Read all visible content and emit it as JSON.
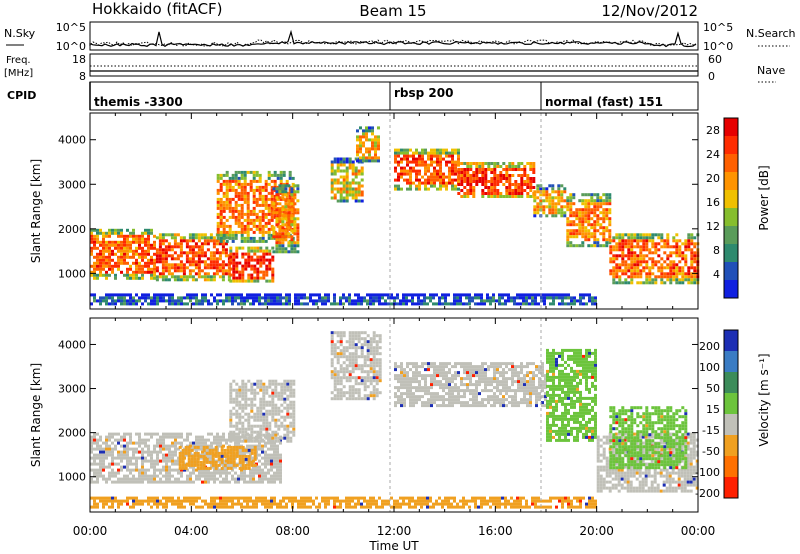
{
  "header": {
    "station": "Hokkaido (fitACF)",
    "beam": "Beam 15",
    "date": "12/Nov/2012"
  },
  "noise_panel": {
    "left_label": "N.Sky",
    "right_label": "N.Search",
    "top_tick": "10^5",
    "bottom_tick": "10^0",
    "right_top_tick": "10^5",
    "right_bottom_tick": "10^0"
  },
  "freq_panel": {
    "left_label_1": "Freq.",
    "left_label_2": "[MHz]",
    "top_tick": "18",
    "bottom_tick": "8",
    "right_label": "Nave",
    "right_top_tick": "60",
    "right_bottom_tick": "0"
  },
  "cpid_panel": {
    "label": "CPID",
    "segments": [
      {
        "label": "themis -3300",
        "start_hour": 0
      },
      {
        "label": "rbsp 200",
        "start_hour": 12
      },
      {
        "label": "normal (fast) 151",
        "start_hour": 18
      }
    ]
  },
  "chart_data": [
    {
      "type": "heatmap",
      "name": "power",
      "xlabel": "",
      "ylabel": "Slant Range [km]",
      "x_unit": "hours UT",
      "xlim": [
        0,
        24
      ],
      "ylim": [
        200,
        4600
      ],
      "y_ticks": [
        "1000",
        "2000",
        "3000",
        "4000"
      ],
      "colorbar_label": "Power [dB]",
      "colorbar_ticks": [
        "4",
        "8",
        "12",
        "16",
        "20",
        "24",
        "28"
      ],
      "colors": [
        "#1020e0",
        "#2050b8",
        "#2e8a6e",
        "#5a9c5a",
        "#86be2e",
        "#f0c000",
        "#ff9400",
        "#ff6000",
        "#ff2c00",
        "#e60000"
      ],
      "regions": [
        {
          "t0": 0.0,
          "t1": 2.6,
          "r0": 900,
          "r1": 2000,
          "level": 0.75
        },
        {
          "t0": 2.6,
          "t1": 5.5,
          "r0": 850,
          "r1": 1900,
          "level": 0.8
        },
        {
          "t0": 5.5,
          "t1": 7.2,
          "r0": 800,
          "r1": 1600,
          "level": 0.85
        },
        {
          "t0": 5.0,
          "t1": 8.0,
          "r0": 1700,
          "r1": 3300,
          "level": 0.7
        },
        {
          "t0": 7.2,
          "t1": 8.2,
          "r0": 1500,
          "r1": 3000,
          "level": 0.65
        },
        {
          "t0": 9.5,
          "t1": 10.8,
          "r0": 2600,
          "r1": 3600,
          "level": 0.55
        },
        {
          "t0": 10.5,
          "t1": 11.4,
          "r0": 3500,
          "r1": 4300,
          "level": 0.6
        },
        {
          "t0": 12.0,
          "t1": 14.5,
          "r0": 2900,
          "r1": 3800,
          "level": 0.8
        },
        {
          "t0": 14.5,
          "t1": 17.5,
          "r0": 2700,
          "r1": 3500,
          "level": 0.85
        },
        {
          "t0": 17.5,
          "t1": 18.8,
          "r0": 2300,
          "r1": 3000,
          "level": 0.6
        },
        {
          "t0": 18.8,
          "t1": 20.5,
          "r0": 1600,
          "r1": 2800,
          "level": 0.7
        },
        {
          "t0": 20.5,
          "t1": 24.0,
          "r0": 800,
          "r1": 1900,
          "level": 0.75
        },
        {
          "t0": 0.0,
          "t1": 20.0,
          "r0": 300,
          "r1": 550,
          "level": 0.15
        }
      ]
    },
    {
      "type": "heatmap",
      "name": "velocity",
      "xlabel": "Time UT",
      "ylabel": "Slant Range [km]",
      "x_unit": "hours UT",
      "xlim": [
        0,
        24
      ],
      "ylim": [
        200,
        4600
      ],
      "x_ticks": [
        "00:00",
        "04:00",
        "08:00",
        "12:00",
        "16:00",
        "20:00",
        "00:00"
      ],
      "y_ticks": [
        "1000",
        "2000",
        "3000",
        "4000"
      ],
      "colorbar_label": "Velocity [m s⁻¹]",
      "colorbar_ticks": [
        "200",
        "100",
        "50",
        "15",
        "-15",
        "-50",
        "-100",
        "-200"
      ],
      "colors": [
        "#1c2eb4",
        "#3a7cc4",
        "#3c8c5a",
        "#6cc43c",
        "#c0c0b8",
        "#f0a020",
        "#ff7000",
        "#ff2000"
      ],
      "regions": [
        {
          "t0": 0.0,
          "t1": 7.5,
          "r0": 850,
          "r1": 2000,
          "class": 4
        },
        {
          "t0": 5.5,
          "t1": 8.0,
          "r0": 1800,
          "r1": 3200,
          "class": 4
        },
        {
          "t0": 3.5,
          "t1": 6.5,
          "r0": 1200,
          "r1": 1700,
          "class": 5
        },
        {
          "t0": 9.5,
          "t1": 11.5,
          "r0": 2800,
          "r1": 4300,
          "class": 4
        },
        {
          "t0": 12.0,
          "t1": 18.0,
          "r0": 2600,
          "r1": 3600,
          "class": 4
        },
        {
          "t0": 18.0,
          "t1": 20.0,
          "r0": 1800,
          "r1": 3900,
          "class": 3
        },
        {
          "t0": 20.0,
          "t1": 24.0,
          "r0": 700,
          "r1": 2000,
          "class": 4
        },
        {
          "t0": 20.5,
          "t1": 23.5,
          "r0": 1200,
          "r1": 2600,
          "class": 3
        },
        {
          "t0": 0.0,
          "t1": 20.0,
          "r0": 300,
          "r1": 550,
          "class": 5
        }
      ]
    }
  ]
}
